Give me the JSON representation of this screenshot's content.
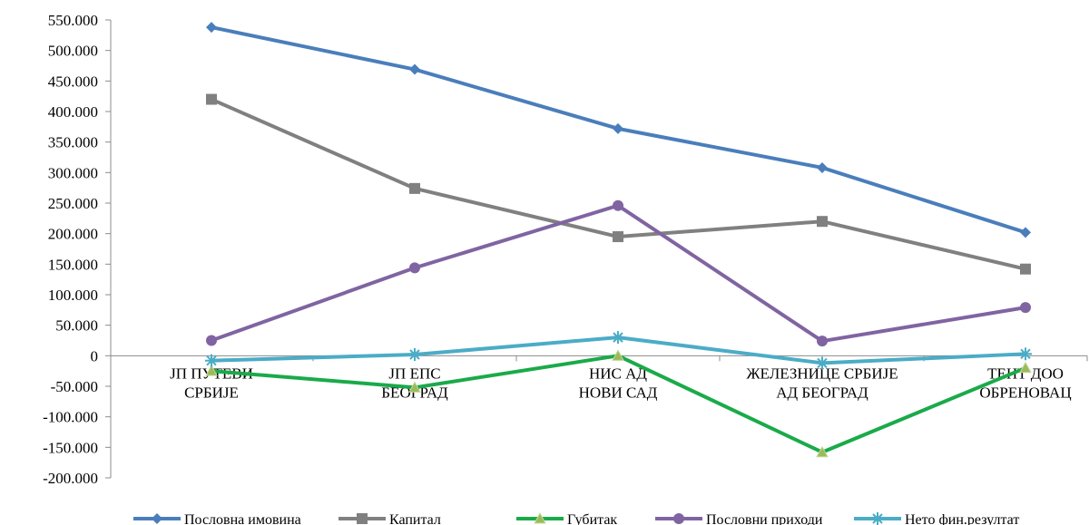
{
  "chart_data": {
    "type": "line",
    "categories": [
      [
        "ЈП ПУТЕВИ",
        "СРБИЈЕ"
      ],
      [
        "ЈП ЕПС",
        "БЕОГРАД"
      ],
      [
        "НИС АД",
        "НОВИ САД"
      ],
      [
        "ЖЕЛЕЗНИЦЕ СРБИЈЕ",
        "АД БЕОГРАД"
      ],
      [
        "ТЕНТ ДОО",
        "ОБРЕНОВАЦ"
      ]
    ],
    "ylim": [
      -200000,
      550000
    ],
    "yticks": [
      550000,
      500000,
      450000,
      400000,
      350000,
      300000,
      250000,
      200000,
      150000,
      100000,
      50000,
      0,
      -50000,
      -100000,
      -150000,
      -200000
    ],
    "ytick_labels": [
      "550.000",
      "500.000",
      "450.000",
      "400.000",
      "350.000",
      "300.000",
      "250.000",
      "200.000",
      "150.000",
      "100.000",
      "50.000",
      "0",
      "-50.000",
      "-100.000",
      "-150.000",
      "-200.000"
    ],
    "grid": false,
    "legend_position": "bottom",
    "series": [
      {
        "name": "Пословна имовина",
        "color": "#4a7ebb",
        "marker": "diamond",
        "values": [
          538000,
          469000,
          372000,
          308000,
          202000
        ]
      },
      {
        "name": "Капитал",
        "color": "#808080",
        "marker": "square",
        "values": [
          420000,
          274000,
          195000,
          220000,
          142000
        ]
      },
      {
        "name": "Губитак",
        "color": "#1aaa4a",
        "marker": "triangle",
        "values": [
          -25000,
          -52000,
          0,
          -158000,
          -20000
        ]
      },
      {
        "name": "Пословни приходи",
        "color": "#8064a2",
        "marker": "circle",
        "values": [
          25000,
          144000,
          246000,
          24000,
          79000
        ]
      },
      {
        "name": "Нето фин.резултат",
        "color": "#4bacc6",
        "marker": "star",
        "values": [
          -8000,
          2000,
          30000,
          -12000,
          3000
        ]
      }
    ]
  }
}
